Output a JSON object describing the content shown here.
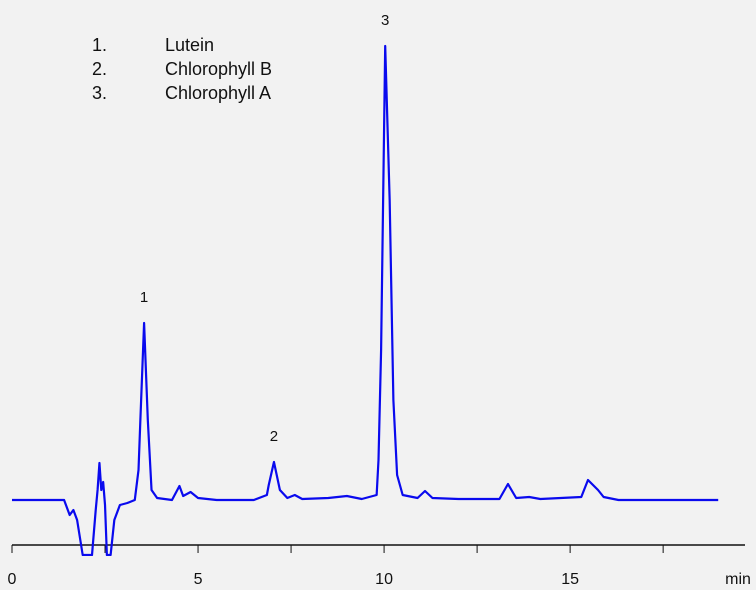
{
  "chart_data": {
    "type": "line",
    "x_label": "min",
    "xlim": [
      0,
      19.7
    ],
    "ylim": [
      -60,
      480
    ],
    "xticks": [
      0,
      5,
      10,
      15
    ],
    "xminor_ticks": [
      2.5,
      7.5,
      12.5,
      17.5
    ],
    "legend_items": [
      {
        "number": "1.",
        "label": "Lutein"
      },
      {
        "number": "2.",
        "label": "Chlorophyll B"
      },
      {
        "number": "3.",
        "label": "Chlorophyll A"
      }
    ],
    "annotations": [
      {
        "text": "1",
        "x": 3.55,
        "y": 177
      },
      {
        "text": "2",
        "x": 7.04,
        "y": 38
      },
      {
        "text": "3",
        "x": 10.03,
        "y": 454
      }
    ],
    "series": [
      {
        "color": "#0a0aee",
        "x": [
          0,
          1.4,
          1.55,
          1.65,
          1.75,
          1.9,
          2.15,
          2.25,
          2.3,
          2.35,
          2.4,
          2.45,
          2.5,
          2.55,
          2.65,
          2.75,
          2.9,
          3.1,
          3.3,
          3.4,
          3.45,
          3.55,
          3.65,
          3.75,
          3.9,
          4.3,
          4.5,
          4.6,
          4.8,
          5.0,
          5.5,
          6.5,
          6.85,
          6.9,
          7.04,
          7.2,
          7.4,
          7.6,
          7.8,
          8.5,
          9.0,
          9.4,
          9.8,
          9.85,
          9.92,
          10.03,
          10.15,
          10.25,
          10.35,
          10.5,
          10.9,
          11.1,
          11.3,
          12.0,
          13.1,
          13.33,
          13.55,
          13.9,
          14.2,
          15.3,
          15.48,
          15.75,
          15.9,
          16.3,
          18.98
        ],
        "values": [
          0,
          0,
          -15,
          -10,
          -20,
          -55,
          -55,
          -10,
          10,
          37,
          10,
          18,
          -5,
          -55,
          -55,
          -20,
          -5,
          -3,
          0,
          30,
          80,
          177,
          80,
          10,
          2,
          0,
          14,
          4,
          8,
          2,
          0,
          0,
          5,
          15,
          38,
          10,
          2,
          5,
          1,
          2,
          4,
          1,
          5,
          40,
          150,
          454,
          300,
          100,
          25,
          5,
          2,
          9,
          2,
          1,
          1,
          16,
          2,
          3,
          1,
          3,
          20,
          10,
          3,
          0,
          0
        ]
      }
    ]
  }
}
